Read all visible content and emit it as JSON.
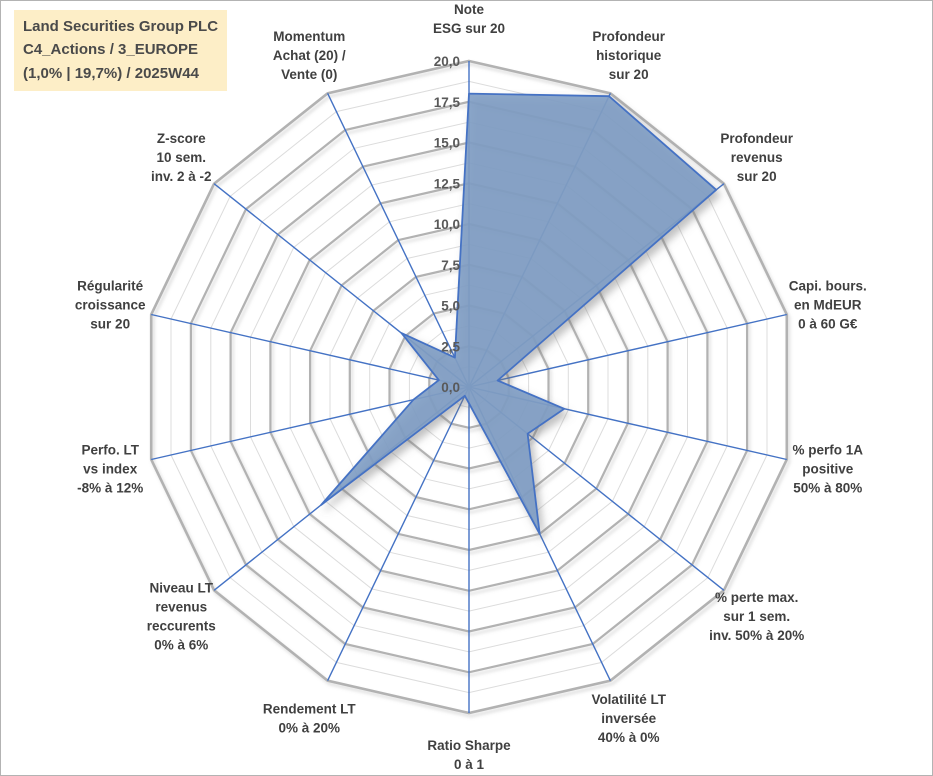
{
  "header": {
    "lines": [
      "Land Securities Group PLC",
      "C4_Actions / 3_EUROPE",
      "(1,0% | 19,7%) / 2025W44"
    ],
    "background": "#fdeec7",
    "text_color": "#4a4a4a"
  },
  "chart_data": {
    "type": "radar",
    "title": "Land Securities Group PLC — C4_Actions / 3_EUROPE (1,0% | 19,7%) / 2025W44",
    "r_axis": {
      "min": 0,
      "max": 20,
      "major_step": 2.5,
      "minor_step": 1.25,
      "tick_labels": [
        "20,0",
        "17,5",
        "15,0",
        "12,5",
        "10,0",
        "7,5",
        "5,0",
        "2,5",
        "0,0"
      ],
      "tick_values": [
        20,
        17.5,
        15,
        12.5,
        10,
        7.5,
        5,
        2.5,
        0
      ]
    },
    "grid": true,
    "legend": "none",
    "axes": [
      {
        "label_lines": [
          "Note",
          "ESG sur 20"
        ],
        "value": 18.0
      },
      {
        "label_lines": [
          "Profondeur",
          "historique",
          "sur 20"
        ],
        "value": 19.8
      },
      {
        "label_lines": [
          "Profondeur",
          "revenus",
          "sur 20"
        ],
        "value": 19.4
      },
      {
        "label_lines": [
          "Capi. bours.",
          "en MdEUR",
          "0 à 60 G€"
        ],
        "value": 1.8
      },
      {
        "label_lines": [
          "% perfo 1A",
          "positive",
          "50% à 80%"
        ],
        "value": 6.0
      },
      {
        "label_lines": [
          "% perte max.",
          "sur 1 sem.",
          "inv. 50% à 20%"
        ],
        "value": 4.6
      },
      {
        "label_lines": [
          "Volatilité LT",
          "inversée",
          "40% à 0%"
        ],
        "value": 10.0
      },
      {
        "label_lines": [
          "Ratio Sharpe",
          "0 à 1"
        ],
        "value": 1.0
      },
      {
        "label_lines": [
          "Rendement LT",
          "0% à 20%"
        ],
        "value": 0.6
      },
      {
        "label_lines": [
          "Niveau LT",
          "revenus",
          "reccurents",
          "0% à 6%"
        ],
        "value": 11.6
      },
      {
        "label_lines": [
          "Perfo. LT",
          "vs index",
          "-8% à 12%"
        ],
        "value": 3.5
      },
      {
        "label_lines": [
          "Régularité",
          "croissance",
          "sur 20"
        ],
        "value": 1.9
      },
      {
        "label_lines": [
          "Z-score",
          "10 sem.",
          "inv. 2 à -2"
        ],
        "value": 5.3
      },
      {
        "label_lines": [
          "Momentum",
          "Achat (20) /",
          "Vente (0)"
        ],
        "value": 2.0
      }
    ],
    "colors": {
      "series_fill": "#7f9dc4",
      "series_stroke": "#4472c4",
      "spoke": "#4472c4",
      "grid_major": "#b2b2b2",
      "grid_minor": "#dcdcdc",
      "tick_text": "#595959",
      "label_text": "#404040"
    }
  }
}
